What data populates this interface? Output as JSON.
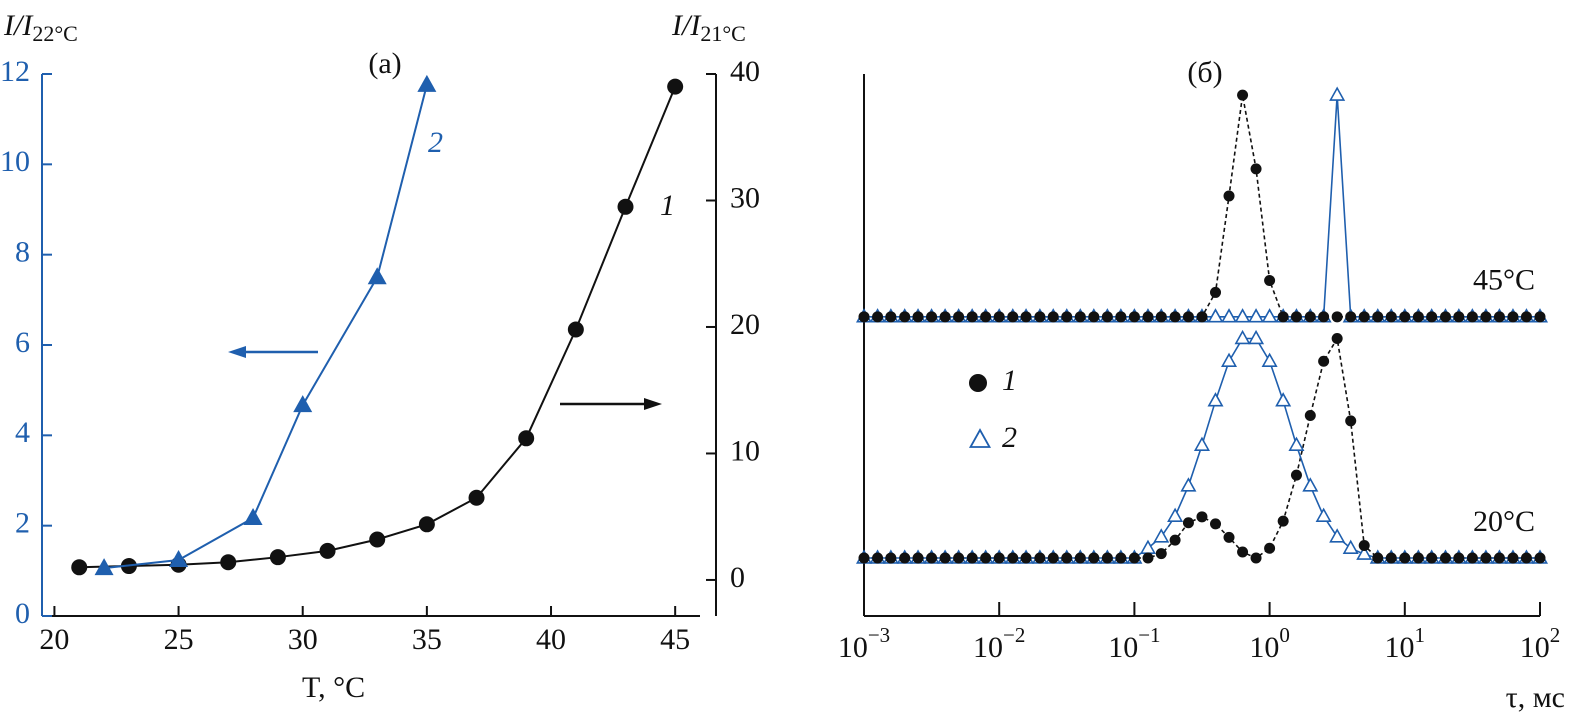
{
  "chart_data": [
    {
      "type": "line",
      "panel": "(а)",
      "x_label": "T, °C",
      "y_label": {
        "main": "I/I",
        "sub": "22°C"
      },
      "y2_label": {
        "main": "I/I",
        "sub": "21°C"
      },
      "xlim": [
        19.5,
        46
      ],
      "xticks": [
        20,
        25,
        30,
        35,
        40,
        45
      ],
      "ylim": [
        0,
        12
      ],
      "yticks": [
        0,
        2,
        4,
        6,
        8,
        10,
        12
      ],
      "y2lim": [
        -2.85,
        40
      ],
      "y2ticks": [
        0,
        10,
        20,
        30,
        40
      ],
      "axis_color": "#1f5fae",
      "series": [
        {
          "name": "1",
          "color": "#111111",
          "marker": "circle",
          "axis": "y2",
          "x": [
            21,
            23,
            25,
            27,
            29,
            31,
            33,
            35,
            37,
            39,
            41,
            43,
            45
          ],
          "values": [
            1,
            1.1,
            1.2,
            1.4,
            1.8,
            2.3,
            3.2,
            4.4,
            6.5,
            11.2,
            19.8,
            29.5,
            39
          ]
        },
        {
          "name": "2",
          "color": "#1f5fae",
          "marker": "triangle",
          "axis": "y",
          "x": [
            22,
            25,
            28,
            30,
            33,
            35
          ],
          "values": [
            1.06,
            1.24,
            2.17,
            4.67,
            7.5,
            11.76
          ]
        }
      ]
    },
    {
      "type": "log-line",
      "panel": "(б)",
      "x_label": "τ, мс",
      "xlim": [
        0.001,
        100
      ],
      "ylim": [
        0,
        1
      ],
      "log_x": true,
      "xticks": [
        {
          "value": 0.001,
          "label": "10",
          "exponent": "−3"
        },
        {
          "value": 0.01,
          "label": "10",
          "exponent": "−2"
        },
        {
          "value": 0.1,
          "label": "10",
          "exponent": "−1"
        },
        {
          "value": 1,
          "label": "10",
          "exponent": "0"
        },
        {
          "value": 10,
          "label": "10",
          "exponent": "1"
        },
        {
          "value": 100,
          "label": "10",
          "exponent": "2"
        }
      ],
      "legend": [
        {
          "name": "1",
          "color": "#111111",
          "marker": "circle"
        },
        {
          "name": "2",
          "color": "#1f5fae",
          "marker": "triangle"
        }
      ],
      "x": [
        0.001,
        0.00126,
        0.00158,
        0.002,
        0.00251,
        0.00316,
        0.00398,
        0.00501,
        0.00631,
        0.00794,
        0.01,
        0.0126,
        0.0158,
        0.02,
        0.0251,
        0.0316,
        0.0398,
        0.0501,
        0.0631,
        0.0794,
        0.1,
        0.126,
        0.158,
        0.2,
        0.251,
        0.316,
        0.398,
        0.501,
        0.631,
        0.794,
        1,
        1.26,
        1.58,
        2,
        2.51,
        3.16,
        3.98,
        5.01,
        6.31,
        7.94,
        10,
        12.6,
        15.8,
        20,
        25.1,
        31.6,
        39.8,
        50.1,
        63.1,
        79.4,
        100
      ],
      "groups": [
        {
          "label": "20°C",
          "series": [
            {
              "values": [
                0.107,
                0.107,
                0.107,
                0.107,
                0.107,
                0.107,
                0.107,
                0.107,
                0.107,
                0.107,
                0.107,
                0.107,
                0.107,
                0.107,
                0.107,
                0.107,
                0.107,
                0.107,
                0.107,
                0.107,
                0.107,
                0.107,
                0.115,
                0.14,
                0.172,
                0.183,
                0.17,
                0.145,
                0.118,
                0.107,
                0.125,
                0.175,
                0.26,
                0.37,
                0.47,
                0.512,
                0.36,
                0.13,
                0.107,
                0.107,
                0.107,
                0.107,
                0.107,
                0.107,
                0.107,
                0.107,
                0.107,
                0.107,
                0.107,
                0.107,
                0.107
              ]
            },
            {
              "values": [
                0.107,
                0.107,
                0.107,
                0.107,
                0.107,
                0.107,
                0.107,
                0.107,
                0.107,
                0.107,
                0.107,
                0.107,
                0.107,
                0.107,
                0.107,
                0.107,
                0.107,
                0.107,
                0.107,
                0.107,
                0.107,
                0.125,
                0.146,
                0.184,
                0.24,
                0.315,
                0.397,
                0.47,
                0.512,
                0.512,
                0.47,
                0.397,
                0.315,
                0.24,
                0.184,
                0.146,
                0.125,
                0.114,
                0.107,
                0.107,
                0.107,
                0.107,
                0.107,
                0.107,
                0.107,
                0.107,
                0.107,
                0.107,
                0.107,
                0.107,
                0.107
              ]
            }
          ]
        },
        {
          "label": "45°C",
          "series": [
            {
              "values": [
                0.552,
                0.552,
                0.552,
                0.552,
                0.552,
                0.552,
                0.552,
                0.552,
                0.552,
                0.552,
                0.552,
                0.552,
                0.552,
                0.552,
                0.552,
                0.552,
                0.552,
                0.552,
                0.552,
                0.552,
                0.552,
                0.552,
                0.552,
                0.552,
                0.552,
                0.552,
                0.597,
                0.775,
                0.961,
                0.825,
                0.619,
                0.552,
                0.552,
                0.552,
                0.552,
                0.552,
                0.552,
                0.552,
                0.552,
                0.552,
                0.552,
                0.552,
                0.552,
                0.552,
                0.552,
                0.552,
                0.552,
                0.552,
                0.552,
                0.552,
                0.552
              ]
            },
            {
              "values": [
                0.552,
                0.552,
                0.552,
                0.552,
                0.552,
                0.552,
                0.552,
                0.552,
                0.552,
                0.552,
                0.552,
                0.552,
                0.552,
                0.552,
                0.552,
                0.552,
                0.552,
                0.552,
                0.552,
                0.552,
                0.552,
                0.552,
                0.552,
                0.552,
                0.552,
                0.552,
                0.552,
                0.552,
                0.552,
                0.552,
                0.552,
                0.552,
                0.552,
                0.552,
                0.552,
                0.961,
                0.552,
                0.552,
                0.552,
                0.552,
                0.552,
                0.552,
                0.552,
                0.552,
                0.552,
                0.552,
                0.552,
                0.552,
                0.552,
                0.552,
                0.552
              ]
            }
          ]
        }
      ]
    }
  ]
}
